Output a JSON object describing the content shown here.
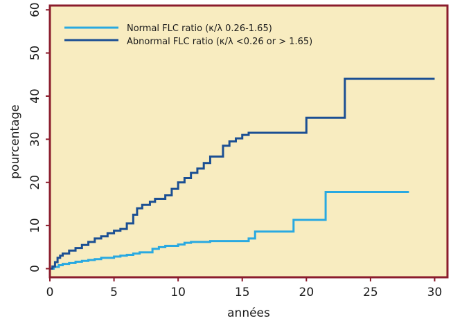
{
  "colors": {
    "plot_bg": "#f8ecc0",
    "frame": "#8b1c2c",
    "normal": "#29a9e1",
    "abnormal": "#1b4f93"
  },
  "chart_data": {
    "type": "line",
    "xlabel": "années",
    "ylabel": "pourcentage",
    "xlim": [
      0,
      31
    ],
    "ylim": [
      -2,
      61
    ],
    "xticks": [
      "0",
      "5",
      "10",
      "15",
      "20",
      "25",
      "30"
    ],
    "yticks": [
      "0",
      "10",
      "20",
      "30",
      "40",
      "50",
      "60"
    ],
    "legend_position": "top-left",
    "grid": false,
    "series": [
      {
        "name": "Normal FLC ratio (κ/λ 0.26-1.65)",
        "color": "#29a9e1",
        "step": true,
        "x": [
          0,
          0.3,
          0.7,
          1.0,
          1.5,
          2.0,
          2.5,
          3.0,
          3.5,
          4.0,
          5.0,
          5.5,
          6.0,
          6.5,
          7.0,
          8.0,
          8.5,
          9.0,
          10.0,
          10.5,
          11.0,
          12.5,
          15.5,
          16.0,
          19.0,
          21.5,
          28.0
        ],
        "y": [
          0,
          0.4,
          0.8,
          1.1,
          1.3,
          1.6,
          1.8,
          2.0,
          2.2,
          2.5,
          2.8,
          3.0,
          3.2,
          3.5,
          3.8,
          4.6,
          5.0,
          5.3,
          5.6,
          6.0,
          6.2,
          6.4,
          7.0,
          8.6,
          11.3,
          17.8,
          17.8
        ]
      },
      {
        "name": "Abnormal FLC ratio (κ/λ <0.26 or > 1.65)",
        "color": "#1b4f93",
        "step": true,
        "x": [
          0,
          0.2,
          0.4,
          0.6,
          0.8,
          1.0,
          1.5,
          2.0,
          2.5,
          3.0,
          3.5,
          4.0,
          4.5,
          5.0,
          5.5,
          6.0,
          6.5,
          6.8,
          7.2,
          7.8,
          8.2,
          9.0,
          9.5,
          10.0,
          10.5,
          11.0,
          11.5,
          12.0,
          12.5,
          13.5,
          14.0,
          14.5,
          15.0,
          15.5,
          20.0,
          23.0,
          30.0
        ],
        "y": [
          0,
          0.5,
          1.5,
          2.5,
          3.0,
          3.5,
          4.2,
          4.8,
          5.5,
          6.2,
          7.0,
          7.5,
          8.2,
          8.8,
          9.2,
          10.5,
          12.5,
          14.0,
          14.8,
          15.5,
          16.2,
          17.0,
          18.5,
          20.0,
          21.0,
          22.2,
          23.2,
          24.5,
          26.0,
          28.5,
          29.5,
          30.2,
          31.0,
          31.5,
          35.0,
          44.0,
          44.0
        ]
      }
    ]
  }
}
